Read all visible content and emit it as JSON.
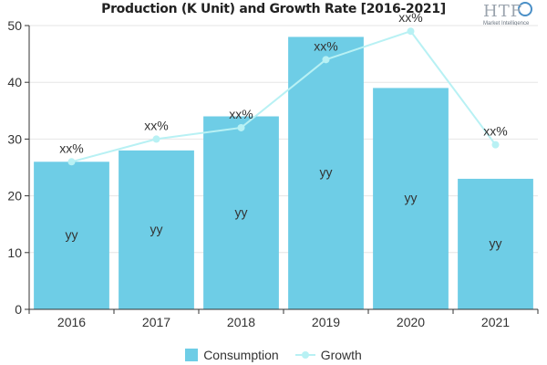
{
  "chart_data": {
    "type": "bar",
    "title": "Production (K Unit) and Growth Rate [2016-2021]",
    "categories": [
      "2016",
      "2017",
      "2018",
      "2019",
      "2020",
      "2021"
    ],
    "series": [
      {
        "name": "Consumption",
        "type": "bar",
        "values": [
          26,
          28,
          34,
          48,
          39,
          23
        ],
        "labels": [
          "yy",
          "yy",
          "yy",
          "yy",
          "yy",
          "yy"
        ]
      },
      {
        "name": "Growth",
        "type": "line",
        "values": [
          26,
          30,
          32,
          44,
          49,
          29
        ],
        "labels": [
          "xx%",
          "xx%",
          "xx%",
          "xx%",
          "xx%",
          "xx%"
        ]
      }
    ],
    "yticks": [
      "0",
      "10",
      "20",
      "30",
      "40",
      "50"
    ],
    "ylim": [
      0,
      50
    ],
    "legend_position": "bottom",
    "colors": {
      "bar": "#6ecde6",
      "line": "#b8f1f4",
      "axis": "#333333"
    }
  },
  "logo": {
    "text": "HTF",
    "subtext": "Market Intelligence"
  }
}
